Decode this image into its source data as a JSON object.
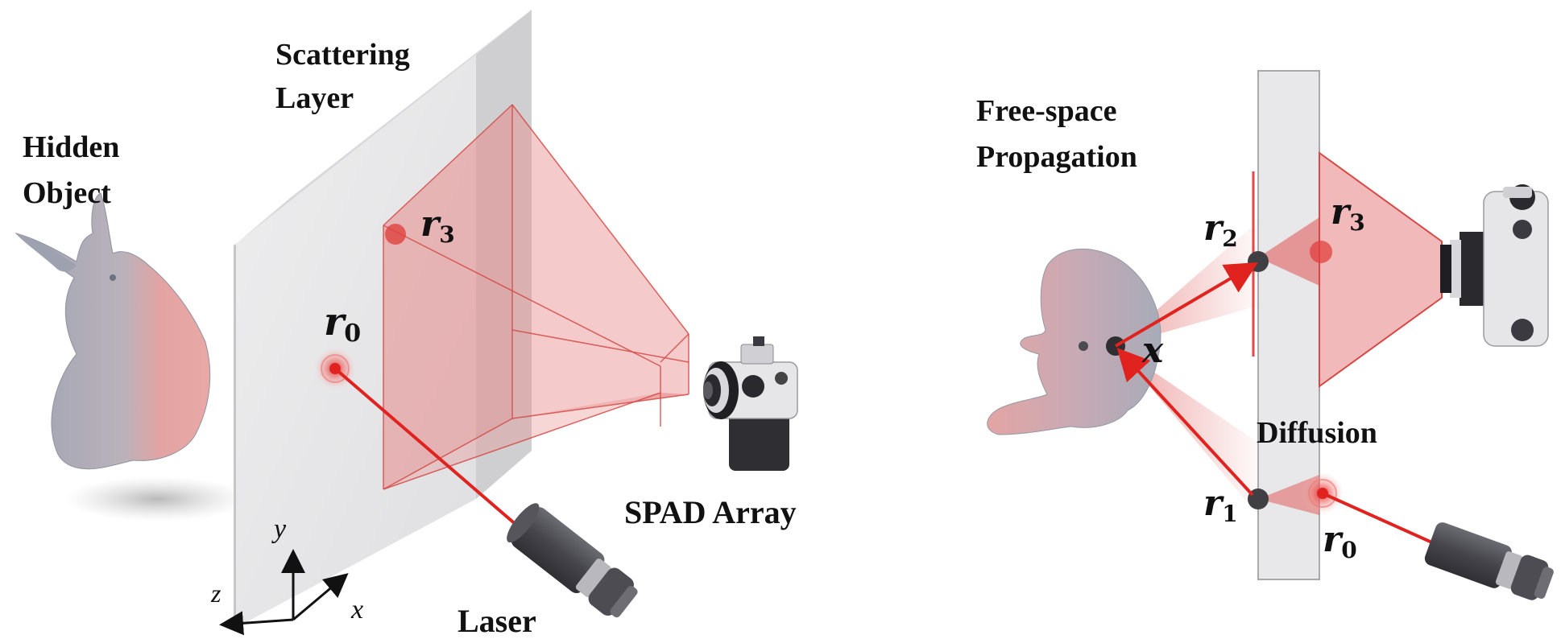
{
  "left_panel": {
    "labels": {
      "scattering_layer_line1": "Scattering",
      "scattering_layer_line2": "Layer",
      "hidden_object_line1": "Hidden",
      "hidden_object_line2": "Object",
      "spad_array": "SPAD Array",
      "laser": "Laser"
    },
    "points": {
      "r0": "r",
      "r0_sub": "0",
      "r3": "r",
      "r3_sub": "3"
    },
    "axes": {
      "y": "y",
      "z": "z",
      "x": "x"
    }
  },
  "right_panel": {
    "labels": {
      "free_space_line1": "Free-space",
      "free_space_line2": "Propagation",
      "diffusion": "Diffusion"
    },
    "points": {
      "r2": "r",
      "r2_sub": "2",
      "r3": "r",
      "r3_sub": "3",
      "x": "x",
      "r1": "r",
      "r1_sub": "1",
      "r0": "r",
      "r0_sub": "0"
    }
  },
  "colors": {
    "laser_red": "#e0231f",
    "frustum_fill": "#e88a8a",
    "wall_light": "#e9e9ea",
    "wall_side": "#d2d2d4",
    "bunny_grey": "#a7aab6",
    "bunny_pink": "#e5a3a1",
    "device_dark": "#3d3d42"
  }
}
